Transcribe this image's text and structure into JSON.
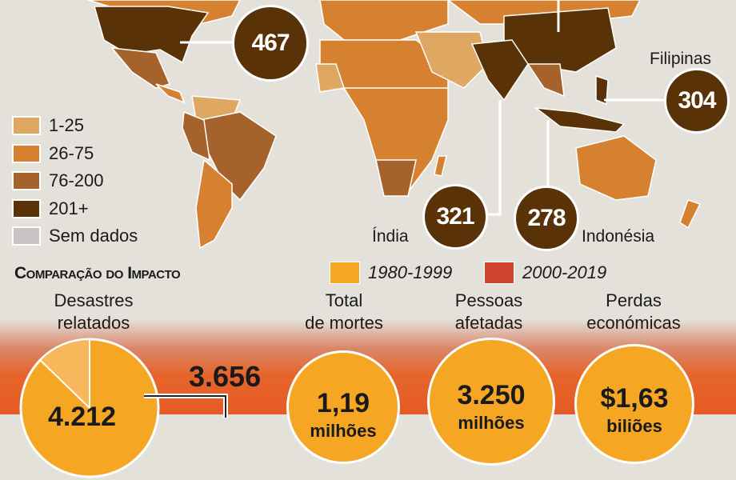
{
  "map": {
    "legend": [
      {
        "label": "1-25",
        "color": "#dfa862"
      },
      {
        "label": "26-75",
        "color": "#d6812f"
      },
      {
        "label": "76-200",
        "color": "#a5622a"
      },
      {
        "label": "201+",
        "color": "#5a3208"
      },
      {
        "label": "Sem dados",
        "color": "#c8c2c2"
      }
    ],
    "callouts": [
      {
        "country": "",
        "value": "467"
      },
      {
        "country": "Filipinas",
        "value": "304"
      },
      {
        "country": "Índia",
        "value": "321"
      },
      {
        "country": "Indonésia",
        "value": "278"
      }
    ]
  },
  "comparison": {
    "title": "Comparação do Impacto",
    "series": [
      {
        "name": "1980-1999",
        "color": "#f5a623"
      },
      {
        "name": "2000-2019",
        "color": "#d0432c"
      }
    ],
    "categories": [
      {
        "label_1": "Desastres",
        "label_2": "relatados",
        "value": "4.212",
        "unit": "",
        "extra": "3.656"
      },
      {
        "label_1": "Total",
        "label_2": "de mortes",
        "value": "1,19",
        "unit": "milhões"
      },
      {
        "label_1": "Pessoas",
        "label_2": "afetadas",
        "value": "3.250",
        "unit": "milhões"
      },
      {
        "label_1": "Perdas",
        "label_2": "económicas",
        "value": "$1,63",
        "unit": "biliões"
      }
    ]
  }
}
